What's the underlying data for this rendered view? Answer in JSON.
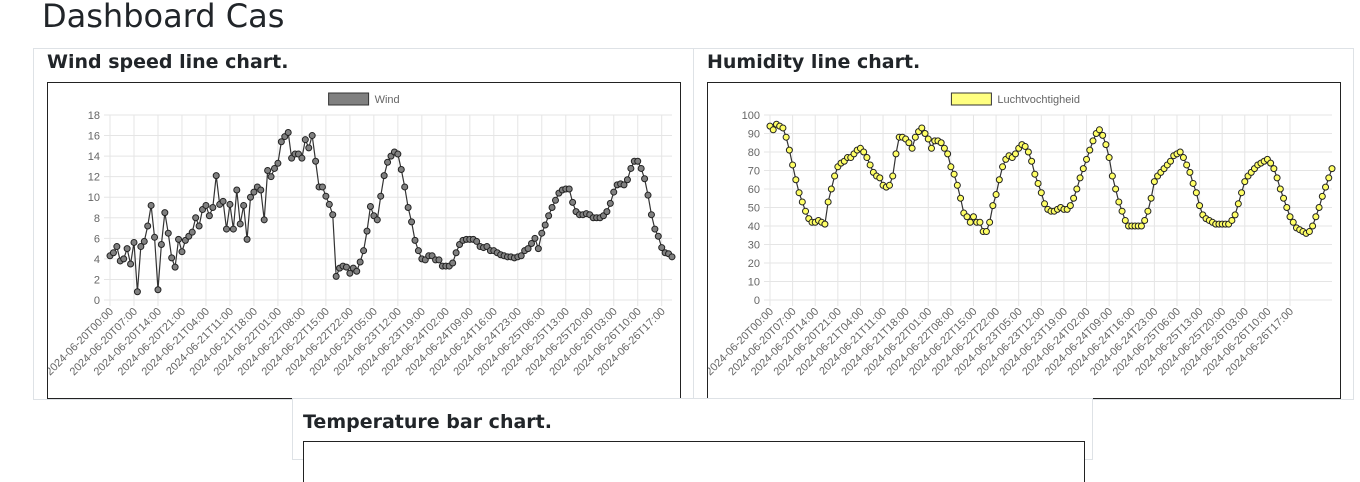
{
  "page": {
    "title": "Dashboard Cas"
  },
  "cards": {
    "wind": {
      "title": "Wind speed line chart."
    },
    "humidity": {
      "title": "Humidity line chart."
    },
    "temperature": {
      "title": "Temperature bar chart."
    }
  },
  "chart_data": [
    {
      "type": "line",
      "title": "",
      "legend": "top-center",
      "legend_color": "#808080",
      "series": [
        {
          "name": "Wind",
          "values": [
            4.3,
            4.6,
            5.2,
            3.8,
            4.0,
            5.0,
            3.5,
            5.6,
            0.8,
            5.2,
            5.7,
            7.2,
            9.2,
            6.1,
            1.0,
            5.4,
            8.5,
            6.5,
            4.1,
            3.2,
            5.9,
            4.7,
            5.8,
            6.2,
            6.6,
            8.0,
            7.2,
            8.8,
            9.2,
            8.2,
            9.0,
            12.1,
            9.3,
            9.6,
            6.9,
            9.3,
            6.9,
            10.7,
            7.4,
            9.2,
            5.9,
            10.0,
            10.5,
            11.0,
            10.7,
            7.8,
            12.6,
            12.0,
            12.8,
            13.3,
            15.4,
            15.9,
            16.3,
            13.8,
            14.2,
            14.2,
            13.8,
            15.6,
            14.8,
            16.0,
            13.5,
            11.0,
            11.0,
            10.1,
            9.3,
            8.3,
            2.3,
            3.1,
            3.3,
            3.2,
            2.6,
            3.1,
            2.8,
            3.7,
            4.8,
            6.7,
            9.1,
            8.2,
            7.8,
            10.1,
            12.1,
            13.4,
            14.0,
            14.4,
            14.2,
            12.7,
            11.0,
            9.0,
            7.6,
            5.8,
            4.8,
            4.0,
            3.9,
            4.3,
            4.3,
            3.9,
            3.9,
            3.3,
            3.3,
            3.3,
            3.6,
            4.6,
            5.4,
            5.8,
            5.9,
            5.9,
            5.9,
            5.7,
            5.2,
            5.1,
            5.2,
            4.8,
            4.8,
            4.6,
            4.4,
            4.3,
            4.2,
            4.2,
            4.1,
            4.2,
            4.3,
            4.8,
            5.0,
            5.5,
            6.0,
            5.0,
            6.5,
            7.3,
            8.2,
            9.0,
            9.7,
            10.4,
            10.7,
            10.8,
            10.8,
            9.5,
            8.6,
            8.3,
            8.3,
            8.4,
            8.3,
            8.0,
            8.0,
            8.0,
            8.2,
            8.6,
            9.4,
            10.5,
            11.2,
            11.3,
            11.2,
            11.7,
            12.8,
            13.5,
            13.5,
            12.8,
            11.8,
            10.2,
            8.3,
            6.9,
            6.2,
            5.1,
            4.6,
            4.5,
            4.2
          ]
        }
      ],
      "x_start": "2024-06-20T00:00",
      "x_step_hours": 1,
      "x_ticks": [
        "2024-06-20T00:00",
        "2024-06-20T07:00",
        "2024-06-20T14:00",
        "2024-06-20T21:00",
        "2024-06-21T04:00",
        "2024-06-21T11:00",
        "2024-06-21T18:00",
        "2024-06-22T01:00",
        "2024-06-22T08:00",
        "2024-06-22T15:00",
        "2024-06-22T22:00",
        "2024-06-23T05:00",
        "2024-06-23T12:00",
        "2024-06-23T19:00",
        "2024-06-24T02:00",
        "2024-06-24T09:00",
        "2024-06-24T16:00",
        "2024-06-24T23:00",
        "2024-06-25T06:00",
        "2024-06-25T13:00",
        "2024-06-25T20:00",
        "2024-06-26T03:00",
        "2024-06-26T10:00",
        "2024-06-26T17:00"
      ],
      "y_ticks": [
        0,
        2,
        4,
        6,
        8,
        10,
        12,
        14,
        16,
        18
      ],
      "ylim": [
        0,
        18
      ],
      "grid": true,
      "line_color": "#333333",
      "point_color": "#808080"
    },
    {
      "type": "line",
      "title": "",
      "legend": "top-center",
      "legend_color": "#ffff80",
      "series": [
        {
          "name": "Luchtvochtigheid",
          "values": [
            94,
            92,
            95,
            94,
            93,
            88,
            81,
            73,
            65,
            58,
            53,
            48,
            44,
            42,
            42,
            43,
            42,
            41,
            53,
            60,
            67,
            72,
            74,
            75,
            77,
            77,
            79,
            81,
            82,
            80,
            77,
            73,
            69,
            67,
            66,
            62,
            61,
            62,
            67,
            79,
            88,
            88,
            87,
            85,
            82,
            88,
            91,
            93,
            90,
            87,
            82,
            86,
            86,
            85,
            82,
            79,
            72,
            68,
            62,
            55,
            47,
            45,
            42,
            45,
            42,
            42,
            37,
            37,
            42,
            51,
            57,
            65,
            72,
            76,
            78,
            77,
            79,
            82,
            84,
            83,
            80,
            75,
            68,
            63,
            58,
            52,
            49,
            48,
            48,
            49,
            50,
            49,
            49,
            51,
            55,
            60,
            66,
            71,
            76,
            81,
            86,
            90,
            92,
            89,
            84,
            77,
            67,
            60,
            53,
            48,
            43,
            40,
            40,
            40,
            40,
            40,
            43,
            48,
            55,
            64,
            67,
            69,
            71,
            73,
            75,
            78,
            79,
            80,
            77,
            73,
            69,
            63,
            58,
            51,
            46,
            44,
            43,
            42,
            41,
            41,
            41,
            41,
            41,
            43,
            46,
            52,
            58,
            64,
            67,
            69,
            71,
            73,
            74,
            75,
            76,
            74,
            71,
            66,
            60,
            55,
            50,
            45,
            42,
            39,
            38,
            37,
            36,
            37,
            40,
            45,
            50,
            56,
            61,
            66,
            71
          ]
        }
      ],
      "x_start": "2024-06-20T00:00",
      "x_step_hours": 1,
      "x_ticks": [
        "2024-06-20T00:00",
        "2024-06-20T07:00",
        "2024-06-20T14:00",
        "2024-06-20T21:00",
        "2024-06-21T04:00",
        "2024-06-21T11:00",
        "2024-06-21T18:00",
        "2024-06-22T01:00",
        "2024-06-22T08:00",
        "2024-06-22T15:00",
        "2024-06-22T22:00",
        "2024-06-23T05:00",
        "2024-06-23T12:00",
        "2024-06-23T19:00",
        "2024-06-24T02:00",
        "2024-06-24T09:00",
        "2024-06-24T16:00",
        "2024-06-24T23:00",
        "2024-06-25T06:00",
        "2024-06-25T13:00",
        "2024-06-25T20:00",
        "2024-06-26T03:00",
        "2024-06-26T10:00",
        "2024-06-26T17:00"
      ],
      "y_ticks": [
        0,
        10,
        20,
        30,
        40,
        50,
        60,
        70,
        80,
        90,
        100
      ],
      "ylim": [
        0,
        100
      ],
      "grid": true,
      "line_color": "#333333",
      "point_color": "#ffff66"
    }
  ]
}
